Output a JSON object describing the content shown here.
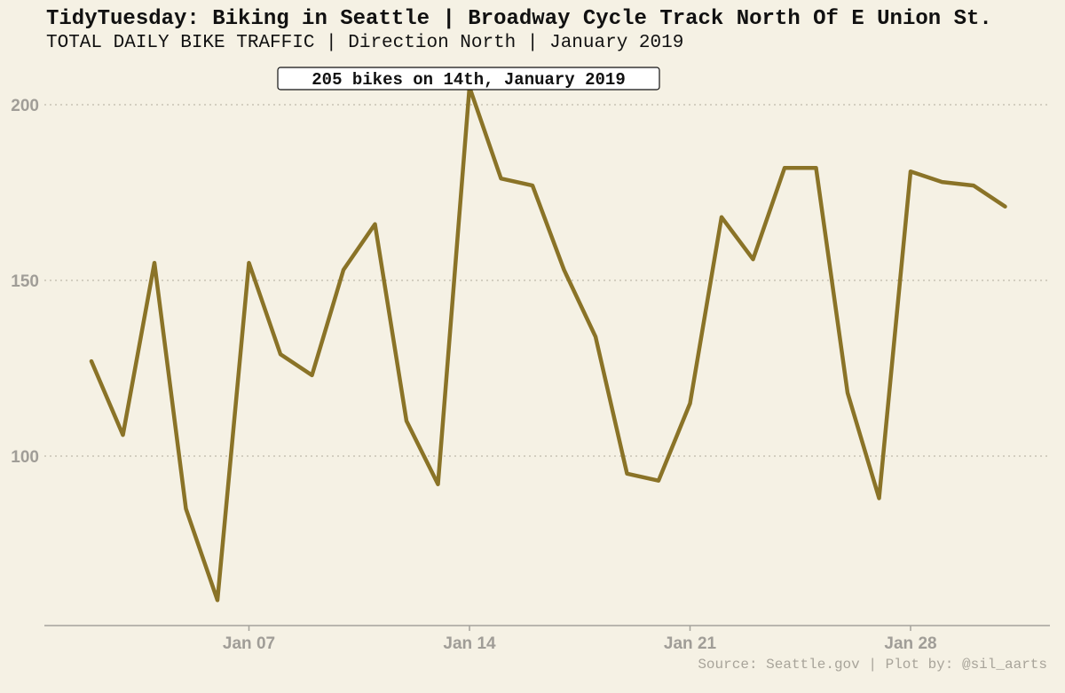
{
  "title": "TidyTuesday: Biking in Seattle | Broadway Cycle Track North Of E Union St.",
  "subtitle": "TOTAL DAILY BIKE TRAFFIC | Direction North | January 2019",
  "caption": "Source: Seattle.gov | Plot by: @sil_aarts",
  "annotation": "205 bikes on 14th, January 2019",
  "colors": {
    "line": "#8a7327",
    "background": "#f5f1e4",
    "grid": "#c8c3b4"
  },
  "chart_data": {
    "type": "line",
    "title": "TidyTuesday: Biking in Seattle | Broadway Cycle Track North Of E Union St.",
    "subtitle": "TOTAL DAILY BIKE TRAFFIC | Direction North | January 2019",
    "xlabel": "",
    "ylabel": "",
    "x": [
      "2019-01-02",
      "2019-01-03",
      "2019-01-04",
      "2019-01-05",
      "2019-01-06",
      "2019-01-07",
      "2019-01-08",
      "2019-01-09",
      "2019-01-10",
      "2019-01-11",
      "2019-01-12",
      "2019-01-13",
      "2019-01-14",
      "2019-01-15",
      "2019-01-16",
      "2019-01-17",
      "2019-01-18",
      "2019-01-19",
      "2019-01-20",
      "2019-01-21",
      "2019-01-22",
      "2019-01-23",
      "2019-01-24",
      "2019-01-25",
      "2019-01-26",
      "2019-01-27",
      "2019-01-28",
      "2019-01-29",
      "2019-01-30",
      "2019-01-31"
    ],
    "values": [
      127,
      106,
      155,
      85,
      59,
      155,
      129,
      123,
      153,
      166,
      110,
      92,
      205,
      179,
      177,
      153,
      134,
      95,
      93,
      115,
      168,
      156,
      182,
      182,
      118,
      88,
      181,
      178,
      177,
      171
    ],
    "ylim": [
      52,
      212
    ],
    "y_ticks": [
      "100",
      "150",
      "200"
    ],
    "y_tick_values": [
      100,
      150,
      200
    ],
    "x_ticks": [
      "Jan 07",
      "Jan 14",
      "Jan 21",
      "Jan 28"
    ],
    "x_tick_dates": [
      "2019-01-07",
      "2019-01-14",
      "2019-01-21",
      "2019-01-28"
    ],
    "grid": "horizontal-dotted",
    "legend": "none"
  }
}
